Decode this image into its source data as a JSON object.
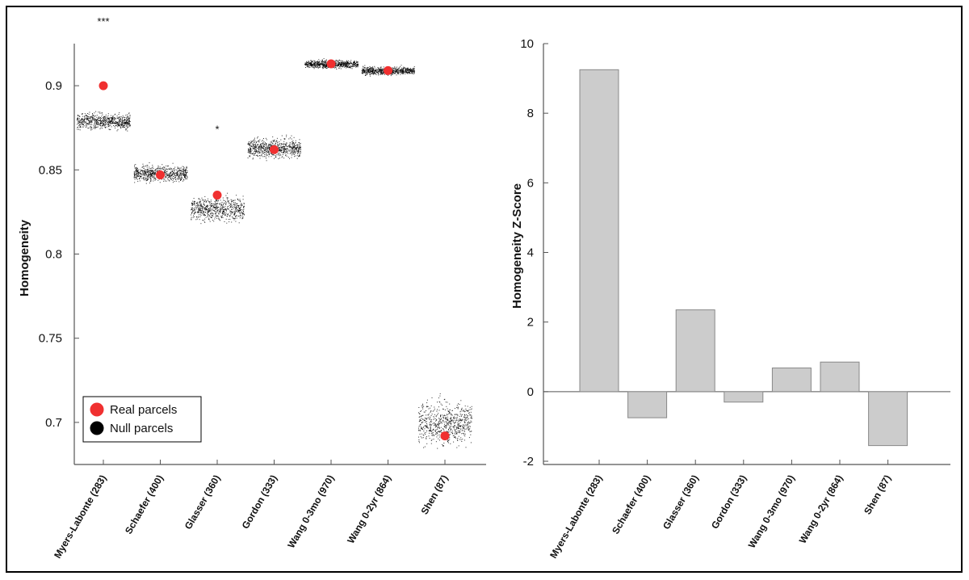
{
  "chart_data": [
    {
      "type": "scatter",
      "ylabel": "Homogeneity",
      "xlabel": "",
      "ylim": [
        0.675,
        0.925
      ],
      "yticks": [
        0.7,
        0.75,
        0.8,
        0.85,
        0.9
      ],
      "ytick_labels": [
        "0.7",
        "0.75",
        "0.8",
        "0.85",
        "0.9"
      ],
      "categories": [
        "Myers-Labonte (283)",
        "Schaefer (400)",
        "Glasser (360)",
        "Gordon (333)",
        "Wang 0-3mo (970)",
        "Wang 0-2yr (864)",
        "Shen (87)"
      ],
      "series": [
        {
          "name": "Real parcels",
          "color": "#f03030",
          "values": [
            0.9,
            0.847,
            0.835,
            0.862,
            0.913,
            0.909,
            0.692
          ]
        },
        {
          "name": "Null parcels",
          "color": "#000000",
          "means": [
            0.879,
            0.848,
            0.827,
            0.863,
            0.913,
            0.909,
            0.7
          ],
          "spreads": [
            0.004,
            0.004,
            0.006,
            0.005,
            0.002,
            0.002,
            0.011
          ]
        }
      ],
      "significance": [
        "***",
        "",
        "*",
        "",
        "",
        "",
        ""
      ],
      "legend": {
        "entries": [
          "Real parcels",
          "Null parcels"
        ],
        "location": "lower-left"
      }
    },
    {
      "type": "bar",
      "ylabel": "Homogeneity Z-Score",
      "xlabel": "",
      "ylim": [
        -2,
        10
      ],
      "yticks": [
        -2,
        0,
        2,
        4,
        6,
        8,
        10
      ],
      "ytick_labels": [
        "-2",
        "0",
        "2",
        "4",
        "6",
        "8",
        "10"
      ],
      "categories": [
        "Myers-Labonte (283)",
        "Schaefer (400)",
        "Glasser (360)",
        "Gordon (333)",
        "Wang 0-3mo (970)",
        "Wang 0-2yr (864)",
        "Shen (87)"
      ],
      "values": [
        9.25,
        -0.75,
        2.35,
        -0.3,
        0.68,
        0.85,
        -1.55
      ],
      "bar_color": "#cccccc"
    }
  ]
}
